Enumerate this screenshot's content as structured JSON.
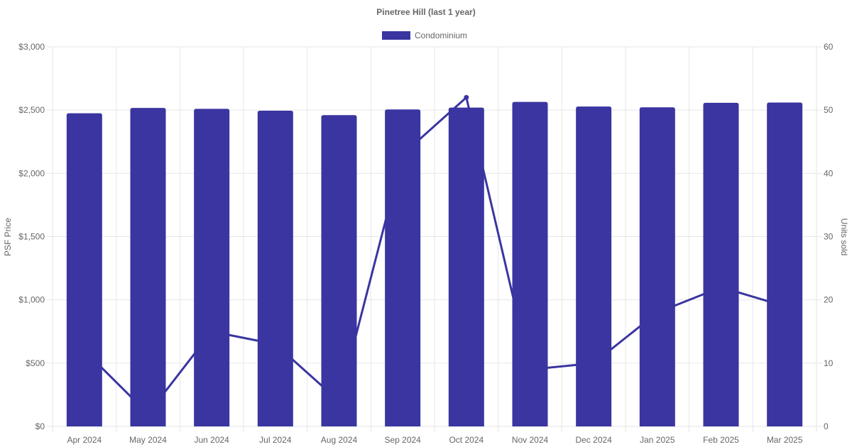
{
  "chart_data": {
    "type": "bar",
    "title": "Pinetree Hill (last 1 year)",
    "categories": [
      "Apr 2024",
      "May 2024",
      "Jun 2024",
      "Jul 2024",
      "Aug 2024",
      "Sep 2024",
      "Oct 2024",
      "Nov 2024",
      "Dec 2024",
      "Jan 2025",
      "Feb 2025",
      "Mar 2025"
    ],
    "series": [
      {
        "name": "Condominium",
        "type": "bar",
        "axis": "left",
        "values": [
          2475,
          2517,
          2510,
          2495,
          2460,
          2505,
          2520,
          2565,
          2528,
          2522,
          2558,
          2560
        ]
      },
      {
        "type": "line",
        "axis": "right",
        "values": [
          12,
          2,
          15,
          13,
          4,
          43,
          52,
          9,
          10,
          18,
          22,
          19
        ]
      }
    ],
    "ylabel_left": "PSF Price",
    "ylabel_right": "Units sold",
    "yticks_left": [
      "$0",
      "$500",
      "$1,000",
      "$1,500",
      "$2,000",
      "$2,500",
      "$3,000"
    ],
    "yticks_right": [
      "0",
      "10",
      "20",
      "30",
      "40",
      "50",
      "60"
    ],
    "ylim_left": [
      0,
      3000
    ],
    "ylim_right": [
      0,
      60
    ],
    "legend_position": "top",
    "grid": true,
    "color": "#3a35a0",
    "gridColor": "#e6e6e6"
  }
}
